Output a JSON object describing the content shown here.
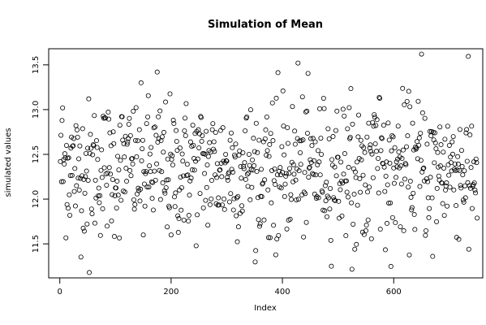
{
  "chart_data": {
    "type": "scatter",
    "title": "Simulation of Mean",
    "xlabel": "Index",
    "ylabel": "simulated values",
    "xlim": [
      -20,
      760
    ],
    "ylim": [
      11.12,
      13.68
    ],
    "xticks": [
      "0",
      "200",
      "400",
      "600"
    ],
    "yticks": [
      "11.5",
      "12.0",
      "12.5",
      "13.0",
      "13.5"
    ],
    "grid": false,
    "marker": "open-circle",
    "n_points": 750,
    "points_sample": [
      {
        "x": 1,
        "y": 12.42
      },
      {
        "x": 5,
        "y": 13.02
      },
      {
        "x": 12,
        "y": 12.6
      },
      {
        "x": 20,
        "y": 12.57
      },
      {
        "x": 30,
        "y": 12.15
      },
      {
        "x": 53,
        "y": 11.18
      },
      {
        "x": 80,
        "y": 12.35
      },
      {
        "x": 120,
        "y": 12.2
      },
      {
        "x": 150,
        "y": 11.6
      },
      {
        "x": 175,
        "y": 13.42
      },
      {
        "x": 200,
        "y": 11.6
      },
      {
        "x": 240,
        "y": 12.6
      },
      {
        "x": 290,
        "y": 12.4
      },
      {
        "x": 340,
        "y": 12.5
      },
      {
        "x": 400,
        "y": 12.3
      },
      {
        "x": 428,
        "y": 13.52
      },
      {
        "x": 470,
        "y": 12.5
      },
      {
        "x": 530,
        "y": 11.44
      },
      {
        "x": 580,
        "y": 12.4
      },
      {
        "x": 630,
        "y": 12.2
      },
      {
        "x": 650,
        "y": 13.62
      },
      {
        "x": 670,
        "y": 11.36
      },
      {
        "x": 700,
        "y": 12.6
      },
      {
        "x": 735,
        "y": 11.44
      },
      {
        "x": 746,
        "y": 12.1
      }
    ]
  }
}
